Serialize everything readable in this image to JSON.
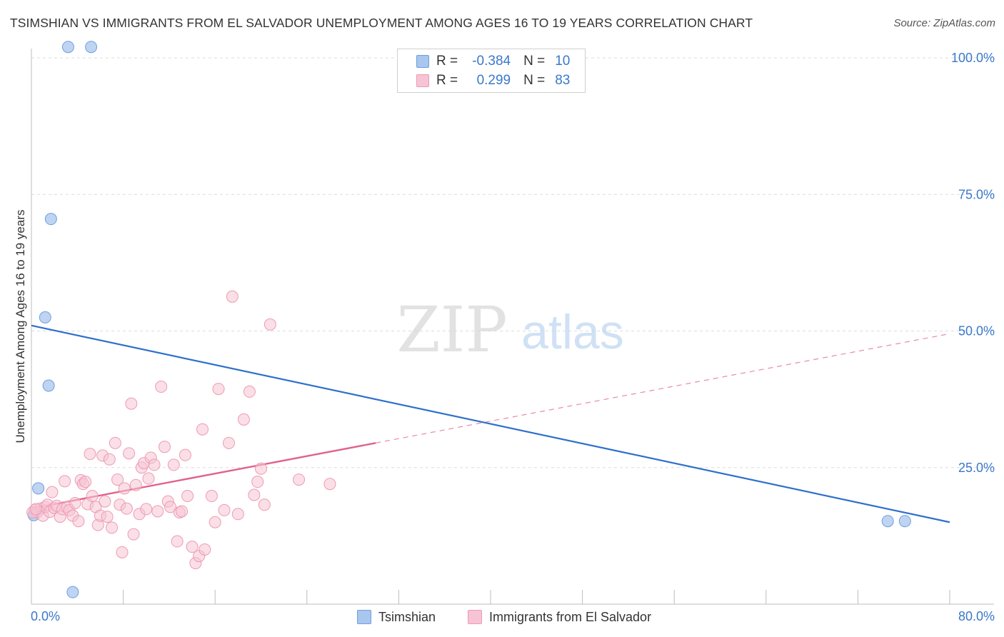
{
  "chart_data": {
    "type": "scatter",
    "title": "TSIMSHIAN VS IMMIGRANTS FROM EL SALVADOR UNEMPLOYMENT AMONG AGES 16 TO 19 YEARS CORRELATION CHART",
    "source": "Source: ZipAtlas.com",
    "xlabel": "",
    "ylabel": "Unemployment Among Ages 16 to 19 years",
    "xlim": [
      0,
      80
    ],
    "ylim": [
      0,
      100
    ],
    "x_tick_labels": {
      "min": "0.0%",
      "max": "80.0%"
    },
    "y_ticks": [
      25,
      50,
      75,
      100
    ],
    "y_tick_labels": [
      "25.0%",
      "50.0%",
      "75.0%",
      "100.0%"
    ],
    "watermark": {
      "part1": "ZIP",
      "part2": "atlas"
    },
    "legend": {
      "r_label": "R =",
      "n_label": "N =",
      "rows": [
        {
          "name": "Tsimshian",
          "r": "-0.384",
          "n": "10"
        },
        {
          "name": "Immigrants from El Salvador",
          "r": "0.299",
          "n": "83"
        }
      ]
    },
    "series": [
      {
        "name": "Tsimshian",
        "color": "#6d9fe0",
        "fill": "#a9c6ee",
        "line_color": "#2f6fcc",
        "trend": {
          "x": [
            0,
            80
          ],
          "y": [
            51.0,
            15.0
          ],
          "dashed_from": null
        },
        "points": [
          [
            3.2,
            102.0
          ],
          [
            5.2,
            102.0
          ],
          [
            1.7,
            70.5
          ],
          [
            1.2,
            52.5
          ],
          [
            1.5,
            40.0
          ],
          [
            0.6,
            21.2
          ],
          [
            0.2,
            16.3
          ],
          [
            3.6,
            2.2
          ],
          [
            74.6,
            15.2
          ],
          [
            76.1,
            15.2
          ]
        ]
      },
      {
        "name": "Immigrants from El Salvador",
        "color": "#ee9ab5",
        "fill": "#f6c4d4",
        "line_color": "#e0628c",
        "trend": {
          "x": [
            0,
            80
          ],
          "y": [
            17.5,
            49.5
          ],
          "dashed_from": 30
        },
        "points": [
          [
            0.3,
            17.2
          ],
          [
            0.5,
            16.8
          ],
          [
            0.8,
            17.5
          ],
          [
            1.0,
            16.2
          ],
          [
            1.2,
            17.8
          ],
          [
            1.4,
            18.2
          ],
          [
            1.6,
            16.9
          ],
          [
            1.8,
            20.5
          ],
          [
            2.0,
            17.6
          ],
          [
            2.2,
            18.0
          ],
          [
            2.5,
            16.0
          ],
          [
            2.7,
            17.4
          ],
          [
            2.9,
            22.5
          ],
          [
            3.1,
            17.8
          ],
          [
            3.3,
            17.2
          ],
          [
            3.6,
            16.2
          ],
          [
            3.8,
            18.5
          ],
          [
            4.1,
            15.2
          ],
          [
            4.3,
            22.7
          ],
          [
            4.5,
            22.0
          ],
          [
            4.7,
            22.4
          ],
          [
            4.9,
            18.3
          ],
          [
            5.1,
            27.5
          ],
          [
            5.3,
            19.8
          ],
          [
            5.6,
            17.8
          ],
          [
            5.8,
            14.5
          ],
          [
            6.0,
            16.2
          ],
          [
            6.2,
            27.2
          ],
          [
            6.4,
            18.8
          ],
          [
            6.6,
            16.0
          ],
          [
            6.8,
            26.5
          ],
          [
            7.0,
            14.0
          ],
          [
            7.3,
            29.5
          ],
          [
            7.5,
            22.8
          ],
          [
            7.7,
            18.2
          ],
          [
            7.9,
            9.5
          ],
          [
            8.1,
            21.2
          ],
          [
            8.3,
            17.5
          ],
          [
            8.5,
            27.6
          ],
          [
            8.7,
            36.7
          ],
          [
            8.9,
            12.8
          ],
          [
            9.1,
            21.8
          ],
          [
            9.4,
            16.5
          ],
          [
            9.6,
            25.0
          ],
          [
            9.8,
            25.8
          ],
          [
            10.0,
            17.4
          ],
          [
            10.2,
            23.0
          ],
          [
            10.4,
            26.8
          ],
          [
            10.7,
            25.5
          ],
          [
            11.0,
            17.0
          ],
          [
            11.3,
            39.8
          ],
          [
            11.6,
            28.8
          ],
          [
            11.9,
            18.8
          ],
          [
            12.1,
            17.8
          ],
          [
            12.4,
            25.5
          ],
          [
            12.7,
            11.5
          ],
          [
            12.9,
            16.8
          ],
          [
            13.1,
            17.0
          ],
          [
            13.4,
            27.3
          ],
          [
            13.6,
            19.8
          ],
          [
            14.0,
            10.5
          ],
          [
            14.3,
            7.5
          ],
          [
            14.6,
            8.8
          ],
          [
            14.9,
            32.0
          ],
          [
            15.1,
            10.0
          ],
          [
            15.7,
            19.8
          ],
          [
            16.0,
            15.0
          ],
          [
            16.3,
            39.4
          ],
          [
            16.8,
            17.2
          ],
          [
            17.2,
            29.5
          ],
          [
            17.5,
            56.3
          ],
          [
            18.0,
            16.5
          ],
          [
            18.5,
            33.8
          ],
          [
            19.0,
            38.9
          ],
          [
            19.4,
            20.0
          ],
          [
            19.7,
            22.4
          ],
          [
            20.0,
            24.8
          ],
          [
            20.3,
            18.2
          ],
          [
            20.8,
            51.2
          ],
          [
            23.3,
            22.8
          ],
          [
            26.0,
            22.0
          ],
          [
            0.1,
            16.8
          ],
          [
            0.4,
            17.4
          ]
        ]
      }
    ]
  }
}
